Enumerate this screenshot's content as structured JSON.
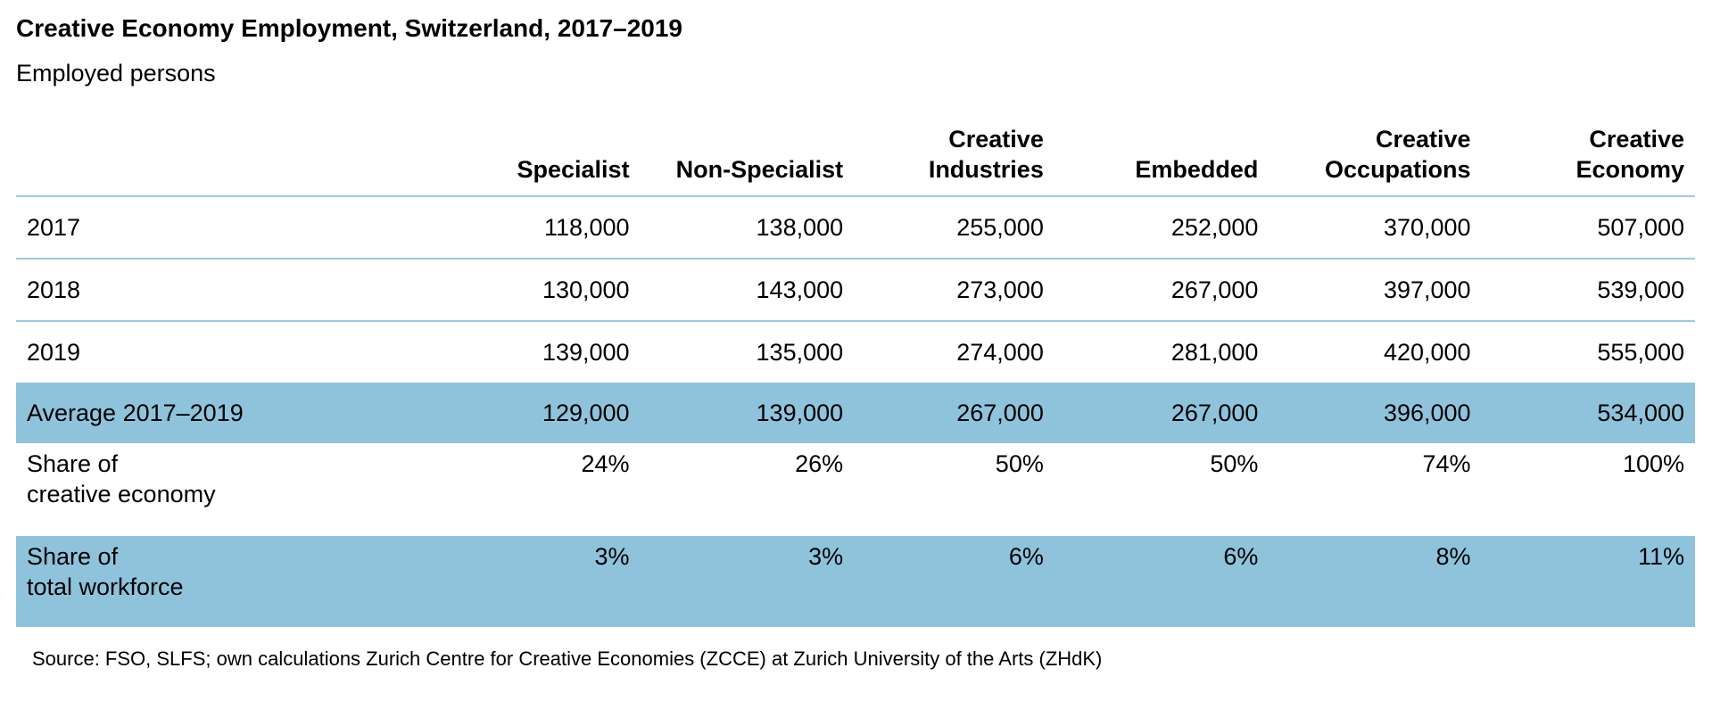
{
  "title": "Creative Economy Employment, Switzerland, 2017–2019",
  "subtitle": "Employed persons",
  "columns": [
    {
      "line1": "",
      "line2": "Specialist"
    },
    {
      "line1": "",
      "line2": "Non-Specialist"
    },
    {
      "line1": "Creative",
      "line2": "Industries"
    },
    {
      "line1": "",
      "line2": "Embedded"
    },
    {
      "line1": "Creative",
      "line2": "Occupations"
    },
    {
      "line1": "Creative",
      "line2": "Economy"
    }
  ],
  "rows": [
    {
      "label1": "2017",
      "label2": "",
      "values": [
        "118,000",
        "138,000",
        "255,000",
        "252,000",
        "370,000",
        "507,000"
      ]
    },
    {
      "label1": "2018",
      "label2": "",
      "values": [
        "130,000",
        "143,000",
        "273,000",
        "267,000",
        "397,000",
        "539,000"
      ]
    },
    {
      "label1": "2019",
      "label2": "",
      "values": [
        "139,000",
        "135,000",
        "274,000",
        "281,000",
        "420,000",
        "555,000"
      ]
    },
    {
      "label1": "Average 2017–2019",
      "label2": "",
      "values": [
        "129,000",
        "139,000",
        "267,000",
        "267,000",
        "396,000",
        "534,000"
      ]
    },
    {
      "label1": "Share of",
      "label2": "creative economy",
      "values": [
        "24%",
        "26%",
        "50%",
        "50%",
        "74%",
        "100%"
      ]
    },
    {
      "label1": "Share of",
      "label2": "total workforce",
      "values": [
        "3%",
        "3%",
        "6%",
        "6%",
        "8%",
        "11%"
      ]
    }
  ],
  "source": "Source: FSO, SLFS; own calculations Zurich Centre for Creative Economies (ZCCE) at Zurich University of the Arts (ZHdK)",
  "colors": {
    "highlight_row": "#8fc3dc",
    "rule": "#9fc8de"
  }
}
